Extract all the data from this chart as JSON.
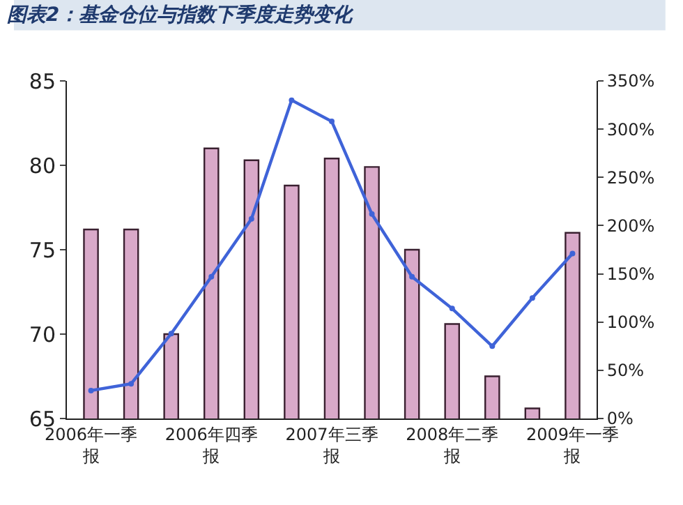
{
  "chart_data": {
    "type": "bar",
    "title": "图表2：基金仓位与指数下季度走势变化",
    "categories": [
      "2006年一季报",
      null,
      null,
      "2006年四季报",
      null,
      null,
      "2007年三季报",
      null,
      null,
      "2008年二季报",
      null,
      null,
      "2009年一季报"
    ],
    "series": [
      {
        "color": "#d9a9c9",
        "values": [
          76.2,
          76.2,
          70.0,
          81.0,
          80.3,
          78.8,
          80.4,
          79.9,
          75.0,
          70.6,
          67.5,
          65.6,
          76.0
        ]
      },
      {
        "type": "line",
        "axis": "y2",
        "color": "#3f63d8",
        "marker": "circle",
        "values": [
          29,
          36,
          88,
          147,
          207,
          330,
          308,
          212,
          147,
          114,
          75,
          125,
          171
        ]
      }
    ],
    "ylim": [
      65,
      85
    ],
    "yticks": [
      65,
      70,
      75,
      80,
      85
    ],
    "y2lim": [
      0,
      350
    ],
    "y2ticks": [
      {
        "value": 0,
        "label": "0%"
      },
      {
        "value": 50,
        "label": "50%"
      },
      {
        "value": 100,
        "label": "100%"
      },
      {
        "value": 150,
        "label": "150%"
      },
      {
        "value": 200,
        "label": "200%"
      },
      {
        "value": 250,
        "label": "250%"
      },
      {
        "value": 300,
        "label": "300%"
      },
      {
        "value": 350,
        "label": "350%"
      }
    ]
  }
}
